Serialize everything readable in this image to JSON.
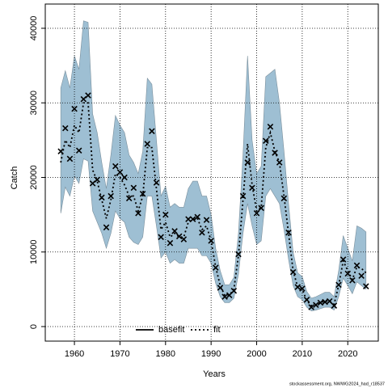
{
  "chart_data": {
    "type": "line",
    "x_label": "Years",
    "y_label": "Catch",
    "footer": "stockassessment.org, NWWG2024_had_r18537",
    "x": [
      1957,
      1958,
      1959,
      1960,
      1961,
      1962,
      1963,
      1964,
      1965,
      1966,
      1967,
      1968,
      1969,
      1970,
      1971,
      1972,
      1973,
      1974,
      1975,
      1976,
      1977,
      1978,
      1979,
      1980,
      1981,
      1982,
      1983,
      1984,
      1985,
      1986,
      1987,
      1988,
      1989,
      1990,
      1991,
      1992,
      1993,
      1994,
      1995,
      1996,
      1997,
      1998,
      1999,
      2000,
      2001,
      2002,
      2003,
      2004,
      2005,
      2006,
      2007,
      2008,
      2009,
      2010,
      2011,
      2012,
      2013,
      2014,
      2015,
      2016,
      2017,
      2018,
      2019,
      2020,
      2021,
      2022,
      2023,
      2024
    ],
    "series": [
      {
        "name": "fit",
        "color": "#000000",
        "dash": "2 3",
        "values": [
          22000,
          25000,
          24000,
          27000,
          26000,
          30000,
          30000,
          21000,
          19500,
          17000,
          14500,
          17000,
          20500,
          20000,
          19000,
          17500,
          17500,
          15500,
          17500,
          24000,
          24000,
          18500,
          13000,
          14000,
          12000,
          12500,
          12000,
          12000,
          14000,
          14300,
          14500,
          13000,
          13500,
          11500,
          8000,
          5500,
          4200,
          4200,
          5000,
          9500,
          17000,
          24500,
          19000,
          15500,
          16000,
          24000,
          26000,
          23500,
          22000,
          17500,
          12500,
          7500,
          5300,
          5000,
          3500,
          2800,
          3000,
          3200,
          3400,
          3400,
          3000,
          5500,
          8800,
          7500,
          6300,
          8000,
          7800,
          7200
        ]
      }
    ],
    "band": {
      "color": "#9ebfd3",
      "upper": [
        32000,
        34300,
        32000,
        36300,
        34500,
        41000,
        40800,
        28500,
        26000,
        22000,
        18500,
        23000,
        28300,
        27000,
        26000,
        23000,
        22000,
        20500,
        23500,
        33300,
        32500,
        25000,
        17500,
        18800,
        16000,
        16500,
        16000,
        16000,
        18500,
        19500,
        19500,
        17500,
        17500,
        15000,
        10500,
        7500,
        5600,
        5600,
        6600,
        12500,
        23000,
        36300,
        25000,
        20500,
        21500,
        33500,
        34000,
        34500,
        30000,
        23500,
        16500,
        10000,
        7200,
        6700,
        4700,
        3800,
        4000,
        4300,
        4600,
        4600,
        4000,
        7500,
        12200,
        10500,
        8800,
        13500,
        13200,
        12700
      ],
      "lower": [
        15200,
        18700,
        17500,
        20200,
        19200,
        22500,
        22200,
        15500,
        14000,
        12500,
        10500,
        12500,
        15500,
        14500,
        14000,
        12000,
        11300,
        11000,
        12000,
        17500,
        17500,
        13500,
        9200,
        10000,
        8500,
        9000,
        8500,
        8500,
        10500,
        10500,
        10500,
        9500,
        9500,
        8500,
        5800,
        4000,
        3200,
        3200,
        3800,
        7000,
        12500,
        16500,
        13500,
        11000,
        11500,
        17500,
        18500,
        17500,
        16500,
        13000,
        9000,
        5500,
        4000,
        3600,
        2600,
        2100,
        2200,
        2400,
        2600,
        2600,
        2200,
        4000,
        6500,
        5500,
        4400,
        6000,
        5500,
        5000
      ]
    },
    "observed": [
      23500,
      26600,
      22500,
      29200,
      23600,
      30500,
      31000,
      19200,
      19700,
      17300,
      13300,
      17500,
      21500,
      20700,
      20000,
      17200,
      18600,
      15200,
      17800,
      24500,
      26200,
      19300,
      12000,
      15000,
      11200,
      12800,
      12100,
      11700,
      14400,
      14400,
      14700,
      12600,
      14300,
      11500,
      7900,
      5200,
      4000,
      4200,
      4800,
      9700,
      17500,
      22000,
      18600,
      15200,
      15900,
      24900,
      26800,
      23300,
      22000,
      17200,
      12600,
      7300,
      5300,
      5100,
      3600,
      2600,
      2900,
      3200,
      3300,
      3400,
      2800,
      5600,
      9000,
      7100,
      6200,
      8200,
      6800,
      5400
    ],
    "legend": [
      {
        "name": "basefit",
        "dash": "none"
      },
      {
        "name": "fit",
        "dash": "2 3"
      }
    ],
    "xlim": [
      1953.6,
      2026.7
    ],
    "ylim": [
      -1950,
      43250
    ],
    "xticks": [
      1960,
      1970,
      1980,
      1990,
      2000,
      2010,
      2020
    ],
    "yticks": [
      0,
      10000,
      20000,
      30000,
      40000
    ],
    "grid": true
  }
}
